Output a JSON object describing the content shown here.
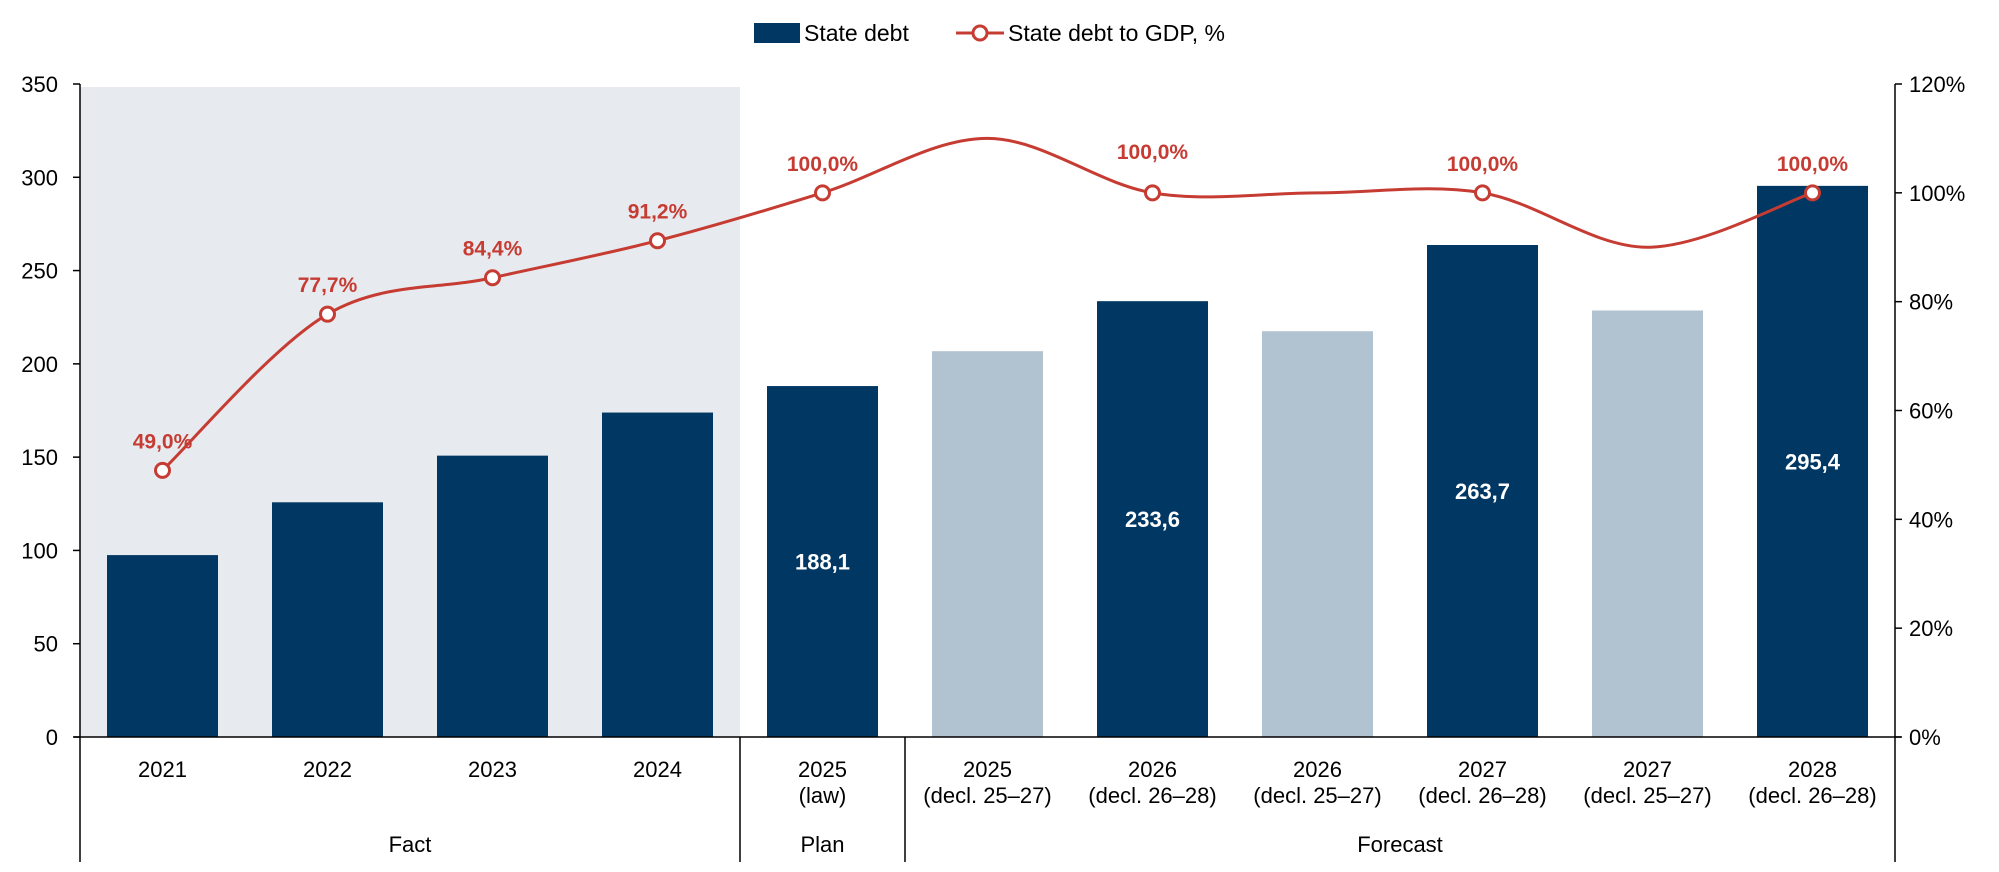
{
  "chart_data": {
    "type": "bar",
    "legend": {
      "position": "top-center",
      "items": [
        {
          "label": "State debt",
          "kind": "bar",
          "color": "#003763"
        },
        {
          "label": "State debt to GDP, %",
          "kind": "line",
          "color": "#c63c33"
        }
      ]
    },
    "left_axis": {
      "min": 0,
      "max": 350,
      "ticks": [
        "0",
        "50",
        "100",
        "150",
        "200",
        "250",
        "300",
        "350"
      ]
    },
    "right_axis": {
      "min": 0,
      "max": 120,
      "ticks": [
        "0%",
        "20%",
        "40%",
        "60%",
        "80%",
        "100%",
        "120%"
      ]
    },
    "categories": [
      {
        "label": [
          "2021"
        ]
      },
      {
        "label": [
          "2022"
        ]
      },
      {
        "label": [
          "2023"
        ]
      },
      {
        "label": [
          "2024"
        ]
      },
      {
        "label": [
          "2025",
          "(law)"
        ]
      },
      {
        "label": [
          "2025",
          "(decl. 25–27)"
        ]
      },
      {
        "label": [
          "2026",
          "(decl. 26–28)"
        ]
      },
      {
        "label": [
          "2026",
          "(decl. 25–27)"
        ]
      },
      {
        "label": [
          "2027",
          "(decl. 26–28)"
        ]
      },
      {
        "label": [
          "2027",
          "(decl. 25–27)"
        ]
      },
      {
        "label": [
          "2028",
          "(decl. 26–28)"
        ]
      }
    ],
    "groups": [
      {
        "label": "Fact",
        "from": 0,
        "to": 3,
        "shaded": true
      },
      {
        "label": "Plan",
        "from": 4,
        "to": 4,
        "shaded": false
      },
      {
        "label": "Forecast",
        "from": 5,
        "to": 10,
        "shaded": false
      }
    ],
    "series": [
      {
        "name": "State debt",
        "axis": "left",
        "values": [
          97.5,
          125.8,
          150.8,
          173.9,
          188.1,
          206.8,
          233.6,
          217.5,
          263.7,
          228.6,
          295.4
        ],
        "colors": [
          "#003763",
          "#003763",
          "#003763",
          "#003763",
          "#003763",
          "#b1c3d0",
          "#003763",
          "#b1c3d0",
          "#003763",
          "#b1c3d0",
          "#003763"
        ],
        "labels": [
          "",
          "",
          "",
          "",
          "188,1",
          "",
          "233,6",
          "",
          "263,7",
          "",
          "295,4"
        ]
      },
      {
        "name": "State debt to GDP, %",
        "axis": "right",
        "values": [
          49.0,
          77.7,
          84.4,
          91.2,
          100.0,
          110.0,
          100.0,
          100.0,
          100.0,
          90.0,
          100.0
        ],
        "markers": [
          true,
          true,
          true,
          true,
          true,
          false,
          true,
          false,
          true,
          false,
          true
        ],
        "labels": [
          "49,0%",
          "77,7%",
          "84,4%",
          "91,2%",
          "100,0%",
          "",
          "100,0%",
          "",
          "100,0%",
          "",
          "100,0%"
        ],
        "color": "#c63c33"
      }
    ]
  }
}
